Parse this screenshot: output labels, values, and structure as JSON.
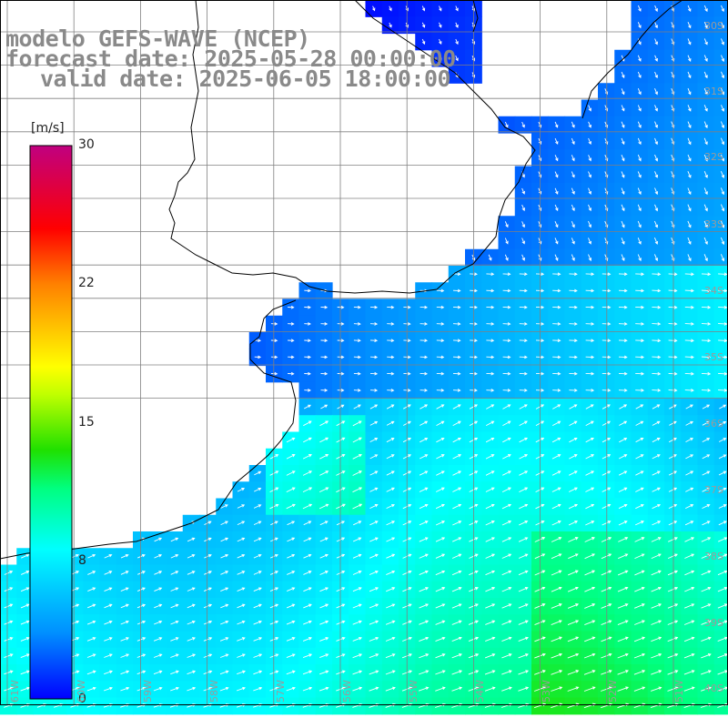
{
  "title": {
    "line1": "modelo GEFS-WAVE (NCEP)",
    "line2": "forecast date: 2025-05-28 00:00:00",
    "line3": "valid date: 2025-06-05 18:00:00"
  },
  "colorbar": {
    "unit": "[m/s]",
    "ticks": [
      "30",
      "22",
      "15",
      "8",
      "0"
    ],
    "min": 0,
    "max": 30,
    "colors": [
      "#0000ff",
      "#0090ff",
      "#00e8ff",
      "#00ff60",
      "#40d000",
      "#ffff00",
      "#ff9000",
      "#ff2000",
      "#ff0040",
      "#c00080"
    ]
  },
  "lat_labels": [
    "30S",
    "31S",
    "32S",
    "33S",
    "34S",
    "35S",
    "36S",
    "37S",
    "38S",
    "39S",
    "40S"
  ],
  "lon_labels": [
    "61W",
    "60W",
    "59W",
    "58W",
    "57W",
    "56W",
    "55W",
    "54W",
    "53W",
    "52W",
    "51W"
  ],
  "colors": {
    "grid": "#808080",
    "coast": "#000000",
    "arrow": "#ffffff",
    "title": "#8a8a8a"
  }
}
